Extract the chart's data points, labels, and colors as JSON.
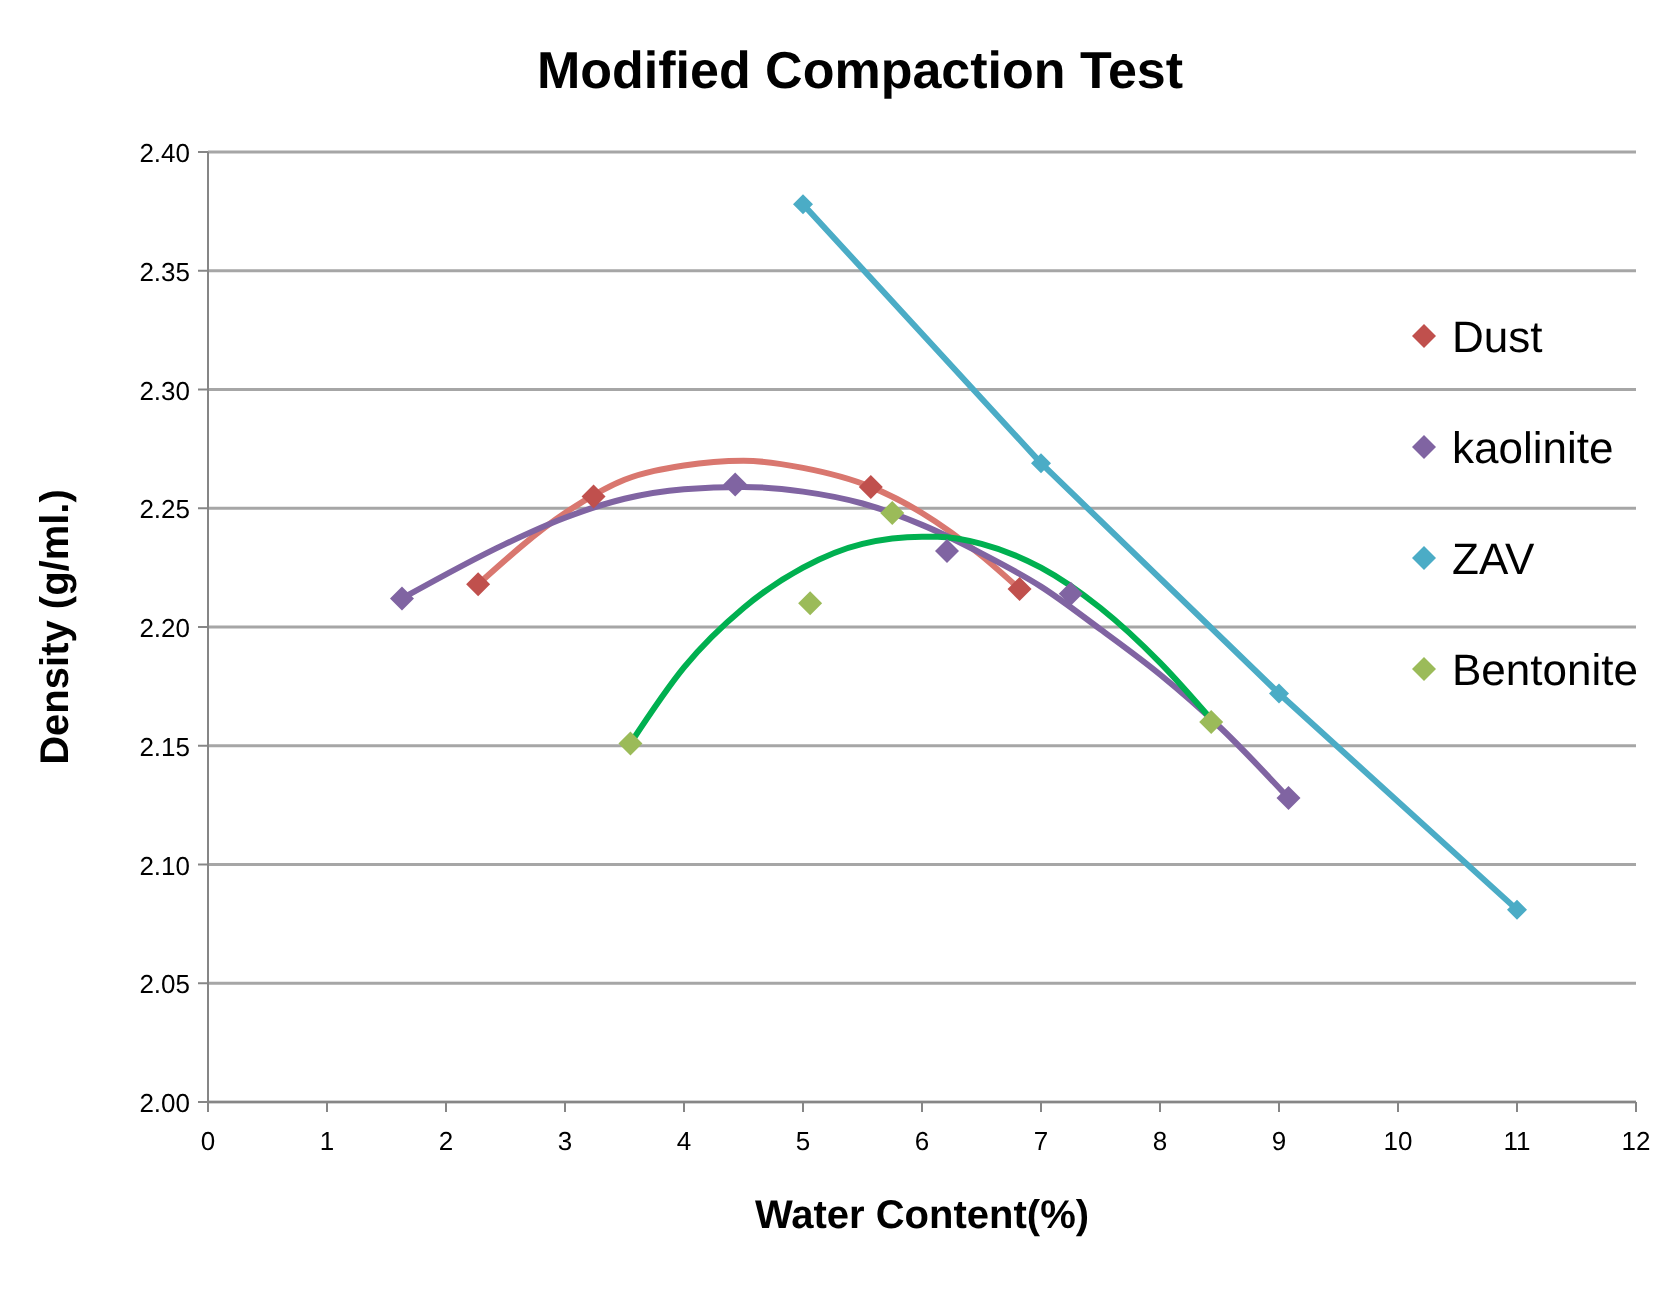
{
  "chart_data": {
    "type": "scatter",
    "title": "Modified Compaction Test",
    "xlabel": "Water Content(%)",
    "ylabel": "Density (g/ml.)",
    "xlim": [
      0,
      12
    ],
    "xticks": [
      0,
      1,
      2,
      3,
      4,
      5,
      6,
      7,
      8,
      9,
      10,
      11,
      12
    ],
    "ylim": [
      2.0,
      2.4
    ],
    "yticks": [
      {
        "value": 2.0,
        "label": "2.00"
      },
      {
        "value": 2.05,
        "label": "2.05"
      },
      {
        "value": 2.1,
        "label": "2.10"
      },
      {
        "value": 2.15,
        "label": "2.15"
      },
      {
        "value": 2.2,
        "label": "2.20"
      },
      {
        "value": 2.25,
        "label": "2.25"
      },
      {
        "value": 2.3,
        "label": "2.30"
      },
      {
        "value": 2.35,
        "label": "2.35"
      },
      {
        "value": 2.4,
        "label": "2.40"
      }
    ],
    "grid": "y",
    "legend": "right",
    "marker": "diamond",
    "series": [
      {
        "type": "line",
        "marker": "none",
        "color": "#d9776f",
        "x": [
          2.27,
          3.0,
          3.5,
          4.0,
          4.5,
          5.0,
          5.57,
          6.0,
          6.5,
          6.82
        ],
        "values": [
          2.218,
          2.248,
          2.262,
          2.268,
          2.27,
          2.267,
          2.259,
          2.248,
          2.23,
          2.216
        ]
      },
      {
        "type": "line",
        "marker": "none",
        "color": "#8064a2",
        "x": [
          1.63,
          2.5,
          3.0,
          3.5,
          4.0,
          4.5,
          5.0,
          5.5,
          6.0,
          6.5,
          7.0,
          7.5,
          8.0,
          8.5,
          9.08
        ],
        "values": [
          2.212,
          2.235,
          2.246,
          2.254,
          2.258,
          2.259,
          2.257,
          2.252,
          2.243,
          2.231,
          2.217,
          2.199,
          2.18,
          2.158,
          2.128
        ]
      },
      {
        "type": "line",
        "marker": "none",
        "color": "#00b050",
        "x": [
          3.55,
          4.0,
          4.5,
          5.0,
          5.5,
          6.0,
          6.13,
          6.5,
          7.0,
          7.5,
          8.0,
          8.45
        ],
        "values": [
          2.151,
          2.183,
          2.208,
          2.225,
          2.235,
          2.238,
          2.238,
          2.235,
          2.225,
          2.208,
          2.185,
          2.16
        ]
      },
      {
        "name": "Dust",
        "type": "scatter",
        "color": "#c0504d",
        "x": [
          2.27,
          3.24,
          5.57,
          6.82
        ],
        "values": [
          2.218,
          2.255,
          2.259,
          2.216
        ]
      },
      {
        "name": "kaolinite",
        "type": "scatter",
        "color": "#8064a2",
        "x": [
          1.63,
          4.43,
          6.21,
          7.25,
          9.08
        ],
        "values": [
          2.212,
          2.26,
          2.232,
          2.214,
          2.128
        ]
      },
      {
        "name": "ZAV",
        "type": "line",
        "color": "#4bacc6",
        "x": [
          5,
          7,
          9,
          11
        ],
        "values": [
          2.378,
          2.269,
          2.172,
          2.081
        ]
      },
      {
        "name": "Bentonite",
        "type": "scatter",
        "color": "#9bbb59",
        "x": [
          3.55,
          5.06,
          5.75,
          8.43
        ],
        "values": [
          2.151,
          2.21,
          2.248,
          2.16
        ]
      }
    ]
  }
}
